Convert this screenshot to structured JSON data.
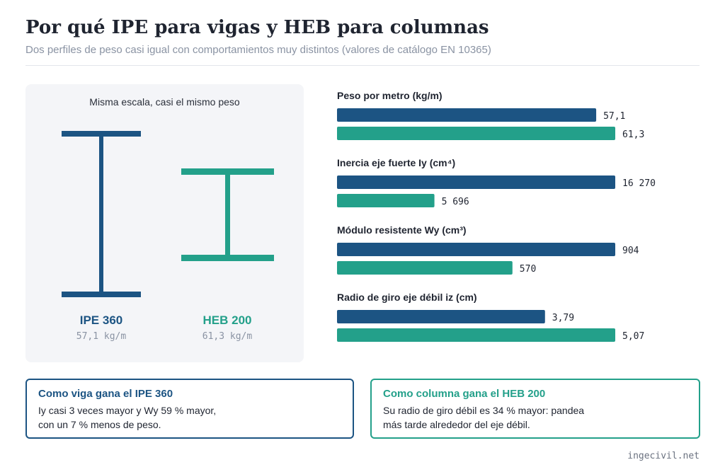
{
  "header": {
    "title": "Por qué IPE para vigas y HEB para columnas",
    "subtitle": "Dos perfiles de peso casi igual con comportamientos muy distintos (valores de catálogo EN 10365)"
  },
  "panel": {
    "caption": "Misma escala, casi el mismo peso",
    "profiles": [
      {
        "name": "IPE 360",
        "weight": "57,1 kg/m",
        "color": "#1c5483"
      },
      {
        "name": "HEB 200",
        "weight": "61,3 kg/m",
        "color": "#23a08a"
      }
    ]
  },
  "chart_data": {
    "type": "bar",
    "orientation": "horizontal",
    "series_colors": [
      "#1c5483",
      "#23a08a"
    ],
    "groups": [
      {
        "label": "Peso por metro (kg/m)",
        "values": [
          57.1,
          61.3
        ],
        "value_labels": [
          "57,1",
          "61,3"
        ]
      },
      {
        "label": "Inercia eje fuerte Iy (cm⁴)",
        "values": [
          16270,
          5696
        ],
        "value_labels": [
          "16 270",
          "5 696"
        ]
      },
      {
        "label": "Módulo resistente Wy (cm³)",
        "values": [
          904,
          570
        ],
        "value_labels": [
          "904",
          "570"
        ]
      },
      {
        "label": "Radio de giro eje débil iz (cm)",
        "values": [
          3.79,
          5.07
        ],
        "value_labels": [
          "3,79",
          "5,07"
        ]
      }
    ]
  },
  "cards": {
    "left": {
      "title": "Como viga gana el IPE 360",
      "line1": "Iy casi 3 veces mayor y Wy 59 % mayor,",
      "line2": "con un 7 % menos de peso."
    },
    "right": {
      "title": "Como columna gana el HEB 200",
      "line1": "Su radio de giro débil es 34 % mayor: pandea",
      "line2": "más tarde alrededor del eje débil."
    }
  },
  "footer": {
    "source": "ingecivil.net"
  }
}
